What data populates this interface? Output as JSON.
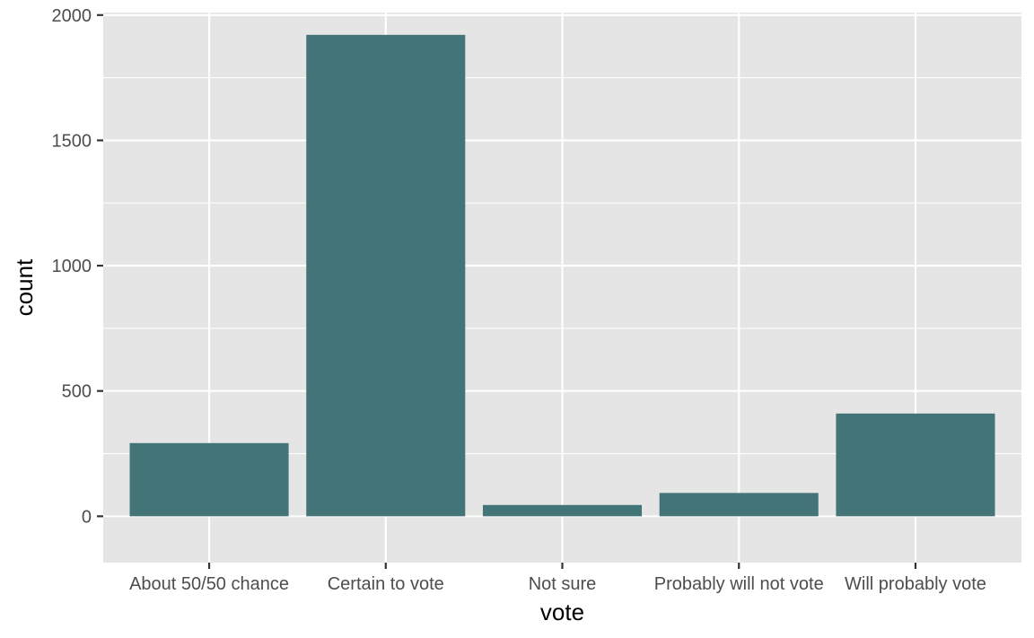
{
  "chart_data": {
    "type": "bar",
    "categories": [
      "About 50/50 chance",
      "Certain to vote",
      "Not sure",
      "Probably will not vote",
      "Will probably vote"
    ],
    "values": [
      292,
      1921,
      45,
      93,
      410
    ],
    "xlabel": "vote",
    "ylabel": "count",
    "ylim": [
      -185,
      2010
    ],
    "yticks": [
      0,
      500,
      1000,
      1500,
      2000
    ],
    "ytick_labels": [
      "0",
      "500",
      "1000",
      "1500",
      "2000"
    ],
    "grid": true,
    "legend": "none",
    "colors": {
      "bar": "#437478",
      "panel": "#e5e5e5",
      "gridline": "#ffffff",
      "tick": "#333333"
    }
  }
}
